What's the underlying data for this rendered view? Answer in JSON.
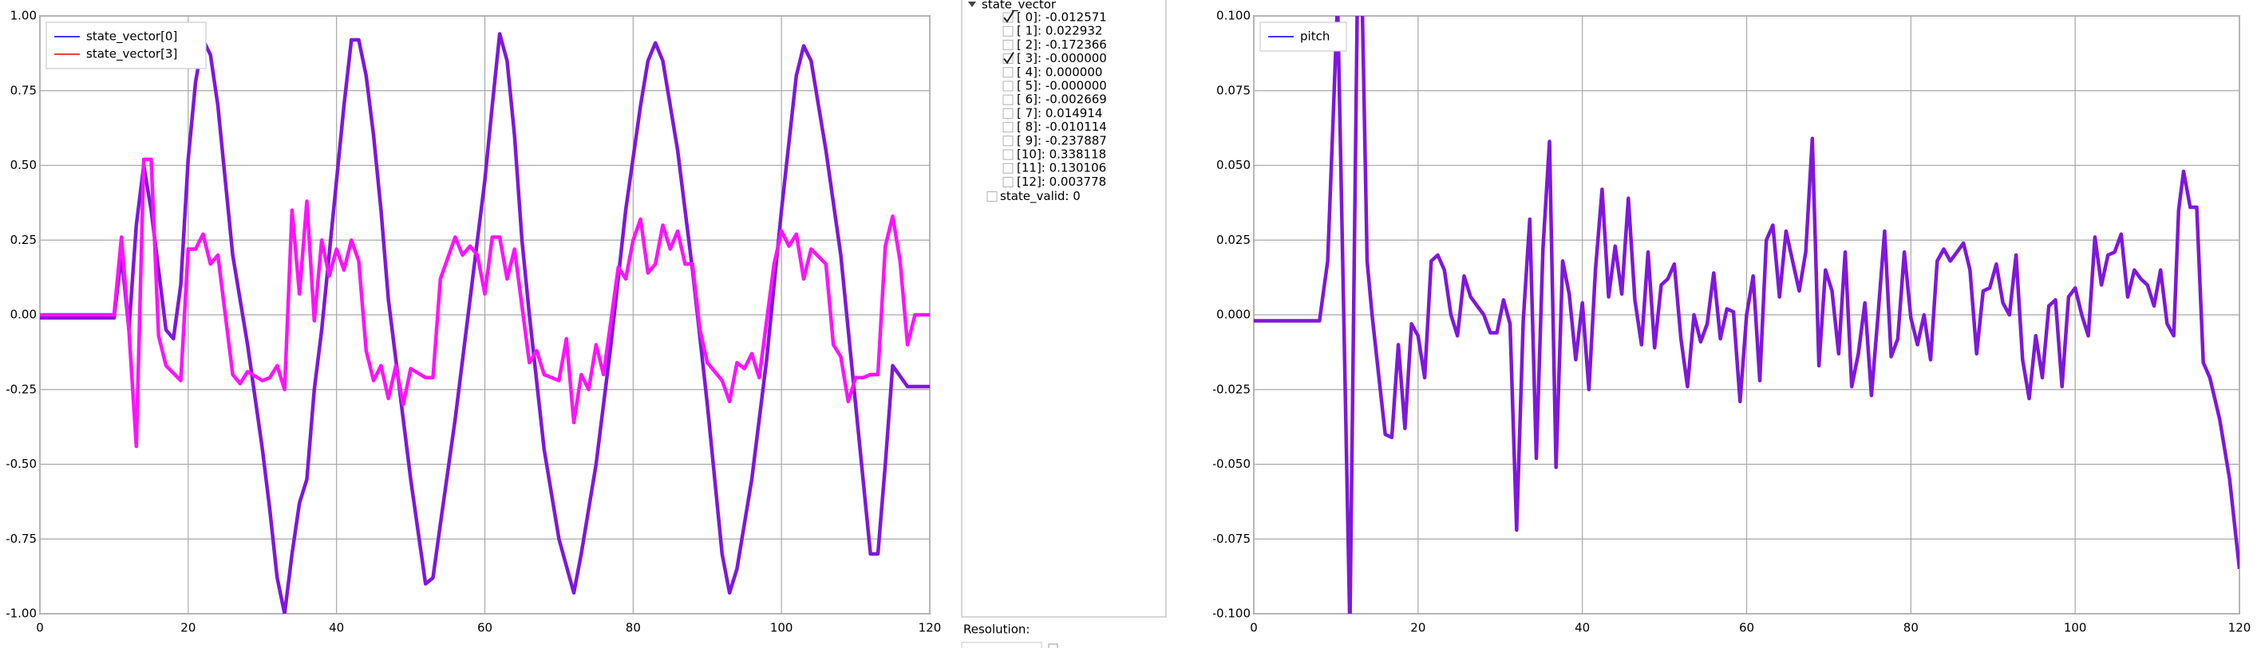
{
  "chart_data": [
    {
      "type": "line",
      "xlim": [
        0,
        120
      ],
      "ylim": [
        -1,
        1
      ],
      "xticks": [
        0,
        20,
        40,
        60,
        80,
        100,
        120
      ],
      "yticks": [
        {
          "value": -1,
          "label": "-1.00"
        },
        {
          "value": -0.75,
          "label": "-0.75"
        },
        {
          "value": -0.5,
          "label": "-0.50"
        },
        {
          "value": -0.25,
          "label": "-0.25"
        },
        {
          "value": 0,
          "label": "0.00"
        },
        {
          "value": 0.25,
          "label": "0.25"
        },
        {
          "value": 0.5,
          "label": "0.50"
        },
        {
          "value": 0.75,
          "label": "0.75"
        },
        {
          "value": 1,
          "label": "1.00"
        }
      ],
      "grid": true,
      "legend": "upper left",
      "series": [
        {
          "name": "state_vector[0]",
          "color": "#7f17dc",
          "legend_color": "#3a3aff",
          "x": [
            0,
            10,
            11,
            12,
            13,
            14,
            15,
            16,
            17,
            18,
            19,
            20,
            21,
            22,
            23,
            24,
            25,
            26,
            28,
            30,
            31,
            32,
            33,
            34,
            35,
            36,
            37,
            38,
            39,
            40,
            41,
            42,
            43,
            44,
            45,
            46,
            47,
            48,
            50,
            52,
            53,
            54,
            56,
            58,
            60,
            61,
            62,
            63,
            64,
            65,
            66,
            68,
            70,
            72,
            73,
            75,
            77,
            79,
            81,
            82,
            83,
            84,
            86,
            88,
            90,
            92,
            93,
            94,
            96,
            98,
            100,
            102,
            103,
            104,
            106,
            108,
            110,
            112,
            113,
            114,
            115,
            117,
            120
          ],
          "values": [
            -0.01,
            -0.01,
            0.2,
            -0.05,
            0.3,
            0.5,
            0.35,
            0.15,
            -0.05,
            -0.08,
            0.1,
            0.52,
            0.78,
            0.92,
            0.87,
            0.7,
            0.45,
            0.2,
            -0.1,
            -0.45,
            -0.65,
            -0.88,
            -1.0,
            -0.8,
            -0.63,
            -0.55,
            -0.25,
            -0.05,
            0.2,
            0.45,
            0.7,
            0.92,
            0.92,
            0.8,
            0.6,
            0.35,
            0.05,
            -0.15,
            -0.55,
            -0.9,
            -0.88,
            -0.7,
            -0.35,
            0.05,
            0.45,
            0.7,
            0.94,
            0.85,
            0.6,
            0.25,
            0.0,
            -0.45,
            -0.75,
            -0.93,
            -0.8,
            -0.5,
            -0.1,
            0.35,
            0.7,
            0.85,
            0.91,
            0.85,
            0.55,
            0.15,
            -0.3,
            -0.8,
            -0.93,
            -0.85,
            -0.55,
            -0.15,
            0.35,
            0.8,
            0.9,
            0.85,
            0.55,
            0.2,
            -0.3,
            -0.8,
            -0.8,
            -0.5,
            -0.17,
            -0.24,
            -0.24
          ]
        },
        {
          "name": "state_vector[3]",
          "color": "#ff12ff",
          "legend_color": "#ff3a3a",
          "x": [
            0,
            10,
            11,
            12,
            13,
            14,
            15,
            16,
            17,
            19,
            20,
            21,
            22,
            23,
            24,
            25,
            26,
            27,
            28,
            30,
            31,
            32,
            33,
            34,
            35,
            36,
            37,
            38,
            39,
            40,
            41,
            42,
            43,
            44,
            45,
            46,
            47,
            48,
            49,
            50,
            52,
            53,
            54,
            56,
            57,
            58,
            59,
            60,
            61,
            62,
            63,
            64,
            65,
            66,
            67,
            68,
            70,
            71,
            72,
            73,
            74,
            75,
            76,
            78,
            79,
            80,
            81,
            82,
            83,
            84,
            85,
            86,
            87,
            88,
            89,
            90,
            92,
            93,
            94,
            95,
            96,
            97,
            99,
            100,
            101,
            102,
            103,
            104,
            106,
            107,
            108,
            109,
            110,
            111,
            112,
            113,
            114,
            115,
            116,
            117,
            118,
            120
          ],
          "values": [
            0.0,
            0.0,
            0.26,
            -0.05,
            -0.44,
            0.52,
            0.52,
            -0.07,
            -0.17,
            -0.22,
            0.22,
            0.22,
            0.27,
            0.17,
            0.2,
            0.0,
            -0.2,
            -0.23,
            -0.19,
            -0.22,
            -0.21,
            -0.17,
            -0.25,
            0.35,
            0.07,
            0.38,
            -0.02,
            0.25,
            0.13,
            0.22,
            0.15,
            0.25,
            0.18,
            -0.12,
            -0.22,
            -0.17,
            -0.28,
            -0.17,
            -0.3,
            -0.18,
            -0.21,
            -0.21,
            0.12,
            0.26,
            0.2,
            0.23,
            0.2,
            0.07,
            0.26,
            0.26,
            0.12,
            0.22,
            0.03,
            -0.16,
            -0.12,
            -0.2,
            -0.22,
            -0.08,
            -0.36,
            -0.2,
            -0.25,
            -0.1,
            -0.2,
            0.16,
            0.12,
            0.25,
            0.32,
            0.14,
            0.17,
            0.3,
            0.22,
            0.28,
            0.17,
            0.17,
            -0.05,
            -0.16,
            -0.22,
            -0.29,
            -0.16,
            -0.18,
            -0.13,
            -0.21,
            0.17,
            0.28,
            0.23,
            0.27,
            0.12,
            0.22,
            0.17,
            -0.1,
            -0.14,
            -0.29,
            -0.21,
            -0.21,
            -0.2,
            -0.2,
            0.23,
            0.33,
            0.18,
            -0.1,
            0.0,
            0.0
          ]
        }
      ]
    },
    {
      "type": "line",
      "xlim": [
        0,
        120
      ],
      "ylim": [
        -0.1,
        0.1
      ],
      "xticks": [
        0,
        20,
        40,
        60,
        80,
        100,
        120
      ],
      "yticks": [
        {
          "value": -0.1,
          "label": "-0.100"
        },
        {
          "value": -0.075,
          "label": "-0.075"
        },
        {
          "value": -0.05,
          "label": "-0.050"
        },
        {
          "value": -0.025,
          "label": "-0.025"
        },
        {
          "value": 0,
          "label": "0.000"
        },
        {
          "value": 0.025,
          "label": "0.025"
        },
        {
          "value": 0.05,
          "label": "0.050"
        },
        {
          "value": 0.075,
          "label": "0.075"
        },
        {
          "value": 0.1,
          "label": "0.100"
        }
      ],
      "grid": true,
      "legend": "upper left",
      "series": [
        {
          "name": "pitch",
          "color": "#7f17dc",
          "legend_color": "#3a3aff",
          "x": [
            0,
            8,
            9,
            10.2,
            11.7,
            12.6,
            13.2,
            13.8,
            14.4,
            15.2,
            16,
            16.8,
            17.6,
            18.4,
            19.2,
            20,
            20.8,
            21.6,
            22.4,
            23.2,
            24,
            24.8,
            25.6,
            26.4,
            27.2,
            28,
            28.8,
            29.6,
            30.4,
            31.2,
            32,
            32.8,
            33.6,
            34.4,
            35.2,
            36,
            36.8,
            37.6,
            38.4,
            39.2,
            40,
            40.8,
            41.6,
            42.4,
            43.2,
            44,
            44.8,
            45.6,
            46.4,
            47.2,
            48,
            48.8,
            49.6,
            50.4,
            51.2,
            52,
            52.8,
            53.6,
            54.4,
            55.2,
            56,
            56.8,
            57.6,
            58.4,
            59.2,
            60,
            60.8,
            61.6,
            62.4,
            63.2,
            64,
            64.8,
            65.6,
            66.4,
            67.2,
            68,
            68.8,
            69.6,
            70.4,
            71.2,
            72,
            72.8,
            73.6,
            74.4,
            75.2,
            76,
            76.8,
            77.6,
            78.4,
            79.2,
            80,
            80.8,
            81.6,
            82.4,
            83.2,
            84,
            84.8,
            85.6,
            86.4,
            87.2,
            88,
            88.8,
            89.6,
            90.4,
            91.2,
            92,
            92.8,
            93.6,
            94.4,
            95.2,
            96,
            96.8,
            97.6,
            98.4,
            99.2,
            100,
            100.8,
            101.6,
            102.4,
            103.2,
            104,
            104.8,
            105.6,
            106.4,
            107.2,
            108,
            108.8,
            109.6,
            110.4,
            111.2,
            112,
            112.6,
            113.2,
            114,
            114.8,
            115.6,
            116.4,
            117.6,
            118.8,
            119.6,
            120
          ],
          "values": [
            -0.002,
            -0.002,
            0.018,
            0.105,
            -0.105,
            0.105,
            0.105,
            0.018,
            0.0,
            -0.02,
            -0.04,
            -0.041,
            -0.01,
            -0.038,
            -0.003,
            -0.007,
            -0.021,
            0.018,
            0.02,
            0.015,
            0.0,
            -0.007,
            0.013,
            0.006,
            0.003,
            0.0,
            -0.006,
            -0.006,
            0.005,
            -0.003,
            -0.072,
            -0.002,
            0.032,
            -0.048,
            0.022,
            0.058,
            -0.051,
            0.018,
            0.007,
            -0.015,
            0.004,
            -0.025,
            0.015,
            0.042,
            0.006,
            0.023,
            0.007,
            0.039,
            0.005,
            -0.01,
            0.021,
            -0.011,
            0.01,
            0.012,
            0.017,
            -0.008,
            -0.024,
            0.0,
            -0.009,
            -0.003,
            0.014,
            -0.008,
            0.002,
            0.001,
            -0.029,
            0.0,
            0.013,
            -0.022,
            0.025,
            0.03,
            0.006,
            0.028,
            0.018,
            0.008,
            0.021,
            0.059,
            -0.017,
            0.015,
            0.008,
            -0.013,
            0.021,
            -0.024,
            -0.013,
            0.004,
            -0.027,
            0.0,
            0.028,
            -0.014,
            -0.008,
            0.021,
            -0.001,
            -0.01,
            0.0,
            -0.015,
            0.018,
            0.022,
            0.018,
            0.021,
            0.024,
            0.015,
            -0.013,
            0.008,
            0.009,
            0.017,
            0.004,
            0.0,
            0.02,
            -0.015,
            -0.028,
            -0.007,
            -0.021,
            0.003,
            0.005,
            -0.024,
            0.006,
            0.009,
            0.0,
            -0.007,
            0.026,
            0.01,
            0.02,
            0.021,
            0.027,
            0.006,
            0.015,
            0.012,
            0.01,
            0.003,
            0.015,
            -0.003,
            -0.007,
            0.035,
            0.048,
            0.036,
            0.036,
            -0.016,
            -0.021,
            -0.035,
            -0.055,
            -0.075,
            -0.085
          ]
        }
      ]
    }
  ],
  "panel": {
    "root": "state_vector",
    "items": [
      {
        "label": "[ 0]: -0.012571",
        "checked": true
      },
      {
        "label": "[ 1]: 0.022932",
        "checked": false
      },
      {
        "label": "[ 2]: -0.172366",
        "checked": false
      },
      {
        "label": "[ 3]: -0.000000",
        "checked": true
      },
      {
        "label": "[ 4]: 0.000000",
        "checked": false
      },
      {
        "label": "[ 5]: -0.000000",
        "checked": false
      },
      {
        "label": "[ 6]: -0.002669",
        "checked": false
      },
      {
        "label": "[ 7]: 0.014914",
        "checked": false
      },
      {
        "label": "[ 8]: -0.010114",
        "checked": false
      },
      {
        "label": "[ 9]: -0.237887",
        "checked": false
      },
      {
        "label": "[10]: 0.338118",
        "checked": false
      },
      {
        "label": "[11]: 0.130106",
        "checked": false
      },
      {
        "label": "[12]: 0.003778",
        "checked": false
      }
    ],
    "extra": {
      "label": "state_valid: 0",
      "checked": false
    },
    "resolution": "Resolution:"
  }
}
